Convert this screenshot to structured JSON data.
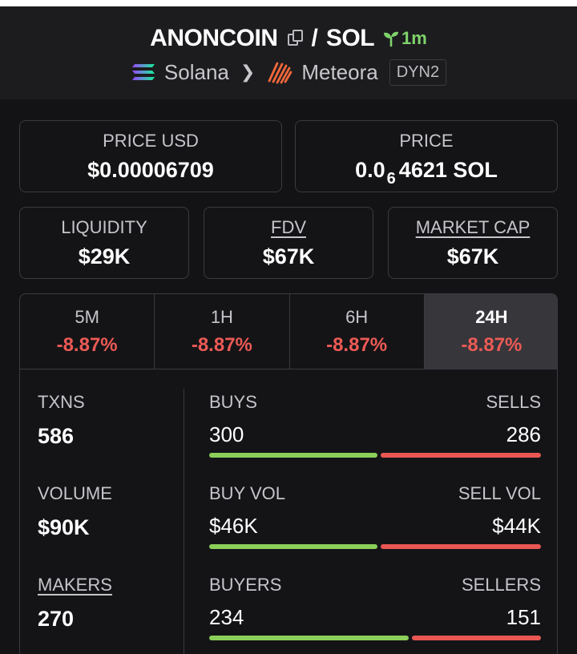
{
  "header": {
    "token": "ANONCOIN",
    "quote": "SOL",
    "separator": "/",
    "age": "1m",
    "chain": "Solana",
    "dex": "Meteora",
    "pool_type": "DYN2"
  },
  "prices": {
    "usd_label": "PRICE USD",
    "usd_value": "$0.00006709",
    "native_label": "PRICE",
    "native_prefix": "0.0",
    "native_zeros": "6",
    "native_suffix": "4621 SOL"
  },
  "metrics": {
    "liquidity_label": "LIQUIDITY",
    "liquidity_value": "$29K",
    "fdv_label": "FDV",
    "fdv_value": "$67K",
    "mcap_label": "MARKET CAP",
    "mcap_value": "$67K"
  },
  "tabs": [
    {
      "label": "5M",
      "value": "-8.87%"
    },
    {
      "label": "1H",
      "value": "-8.87%"
    },
    {
      "label": "6H",
      "value": "-8.87%"
    },
    {
      "label": "24H",
      "value": "-8.87%"
    }
  ],
  "stats": {
    "txns_label": "TXNS",
    "txns_value": "586",
    "buys_label": "BUYS",
    "buys_value": "300",
    "sells_label": "SELLS",
    "sells_value": "286",
    "volume_label": "VOLUME",
    "volume_value": "$90K",
    "buy_vol_label": "BUY VOL",
    "buy_vol_value": "$46K",
    "sell_vol_label": "SELL VOL",
    "sell_vol_value": "$44K",
    "makers_label": "MAKERS",
    "makers_value": "270",
    "buyers_label": "BUYERS",
    "buyers_value": "234",
    "sellers_label": "SELLERS",
    "sellers_value": "151"
  },
  "ratios": {
    "buys_fraction": 0.512,
    "buy_vol_fraction": 0.511,
    "buyers_fraction": 0.608
  },
  "colors": {
    "negative": "#ec5a55",
    "buy_bar": "#8bcf5a",
    "sell_bar": "#ea5752",
    "age_badge": "#7fd36b"
  }
}
